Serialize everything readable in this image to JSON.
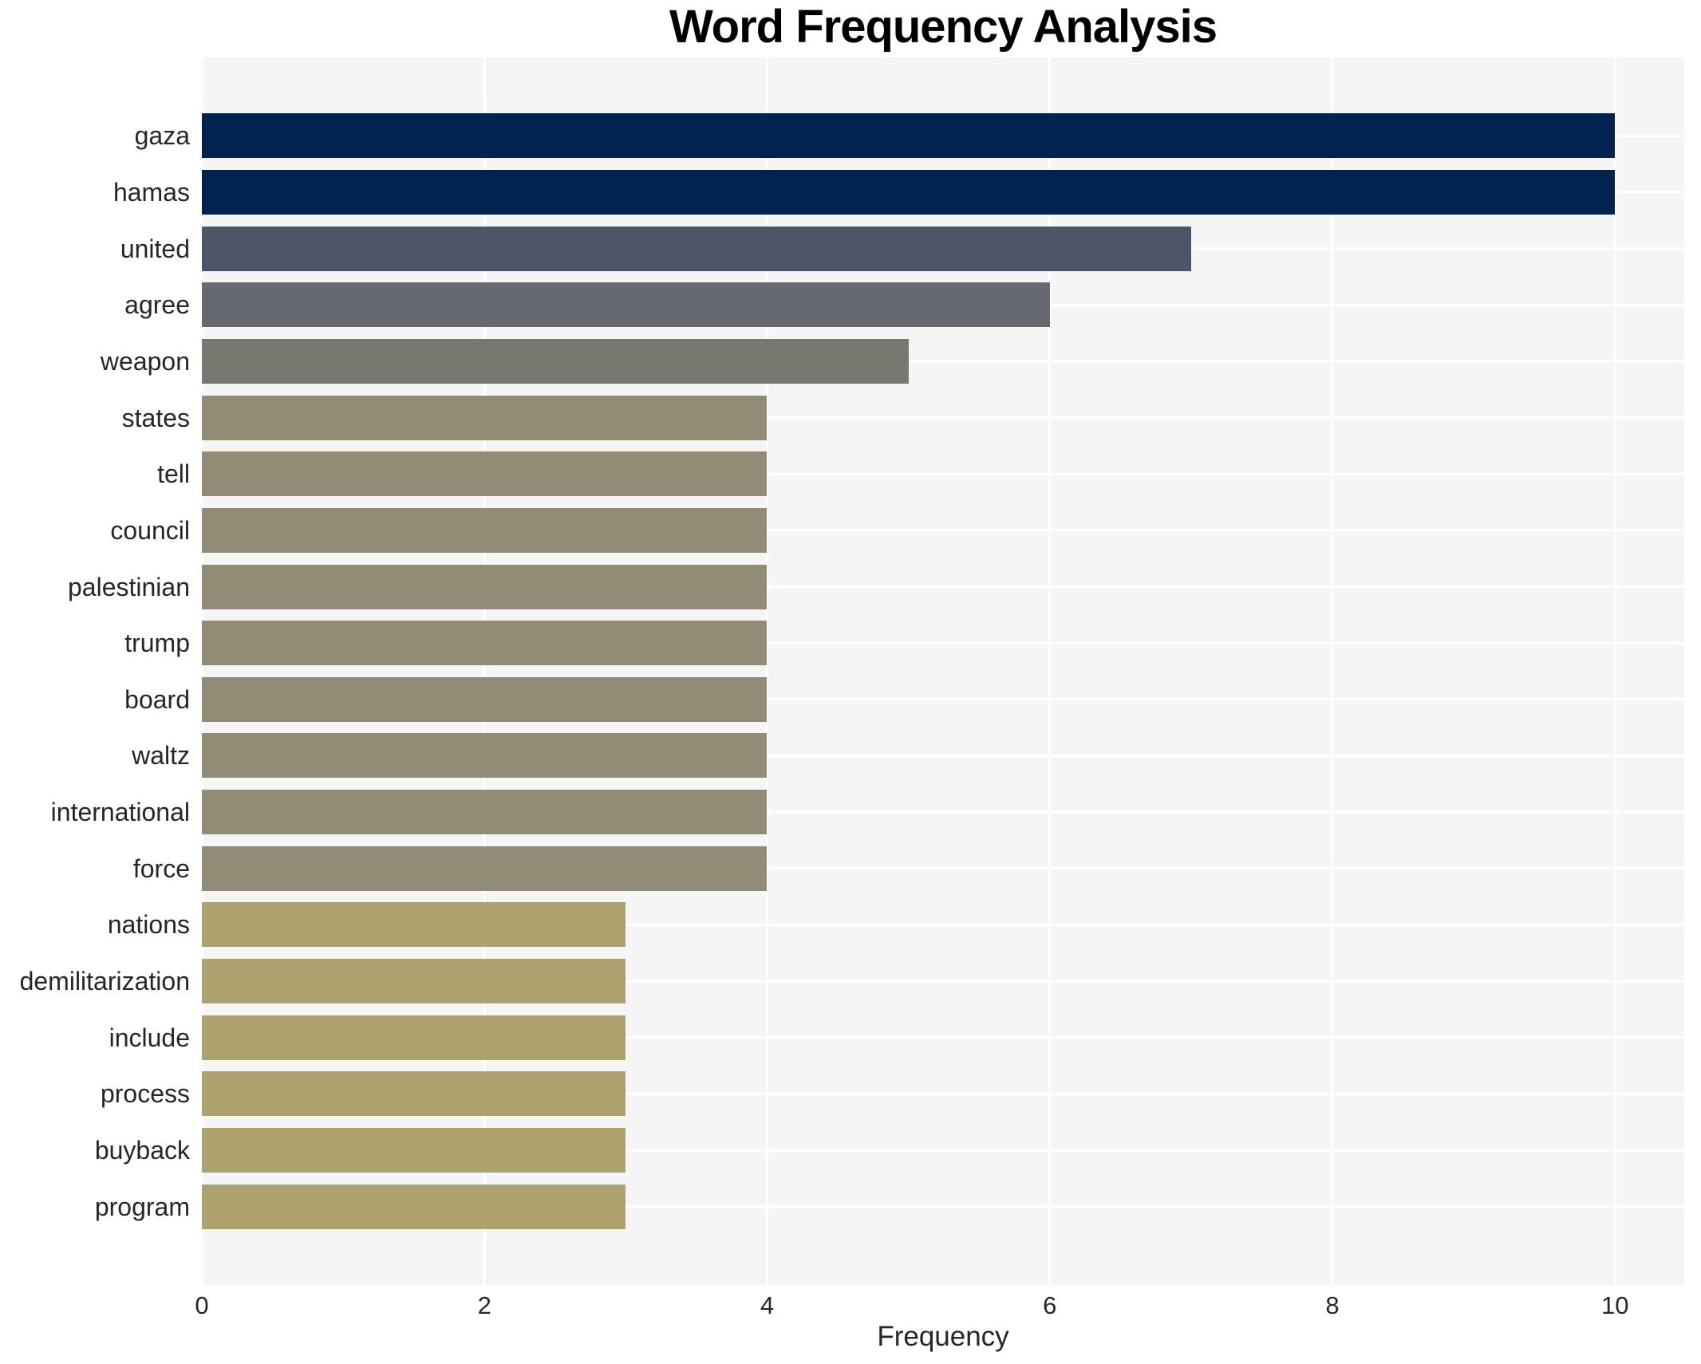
{
  "chart_data": {
    "type": "bar",
    "orientation": "horizontal",
    "title": "Word Frequency Analysis",
    "xlabel": "Frequency",
    "ylabel": "",
    "categories": [
      "gaza",
      "hamas",
      "united",
      "agree",
      "weapon",
      "states",
      "tell",
      "council",
      "palestinian",
      "trump",
      "board",
      "waltz",
      "international",
      "force",
      "nations",
      "demilitarization",
      "include",
      "process",
      "buyback",
      "program"
    ],
    "values": [
      10,
      10,
      7,
      6,
      5,
      4,
      4,
      4,
      4,
      4,
      4,
      4,
      4,
      4,
      3,
      3,
      3,
      3,
      3,
      3
    ],
    "bar_colors": [
      "#00234f",
      "#00234f",
      "#4d5569",
      "#666970",
      "#787770",
      "#928c77",
      "#928c77",
      "#928c77",
      "#928c77",
      "#928c77",
      "#928c77",
      "#928c77",
      "#928c77",
      "#928c77",
      "#ada26d",
      "#ada26d",
      "#ada26d",
      "#ada26d",
      "#ada26d",
      "#ada26d"
    ],
    "xticks": [
      0,
      2,
      4,
      6,
      8,
      10
    ],
    "xlim": [
      0,
      10.49
    ],
    "grid": true,
    "legend": false,
    "plot_background": "#f5f5f6",
    "grid_color": "#ffffff"
  }
}
